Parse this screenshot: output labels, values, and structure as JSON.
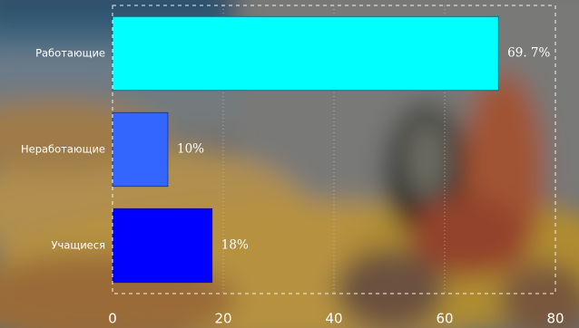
{
  "chart_data": {
    "type": "bar",
    "orientation": "horizontal",
    "categories": [
      "Работающие",
      "Неработающие",
      "Учащиеся"
    ],
    "values": [
      69.7,
      10,
      18
    ],
    "value_labels": [
      "69. 7%",
      "10%",
      "18%"
    ],
    "bar_colors": [
      "#00ffff",
      "#3366ff",
      "#0000ff"
    ],
    "xlim": [
      0,
      80
    ],
    "x_ticks": [
      0,
      20,
      40,
      60,
      80
    ],
    "x_tick_labels": [
      "0",
      "20",
      "40",
      "60",
      "80"
    ],
    "title": "",
    "xlabel": "",
    "ylabel": "",
    "grid": "vertical dotted",
    "legend": "none",
    "background": "blurred photograph"
  }
}
